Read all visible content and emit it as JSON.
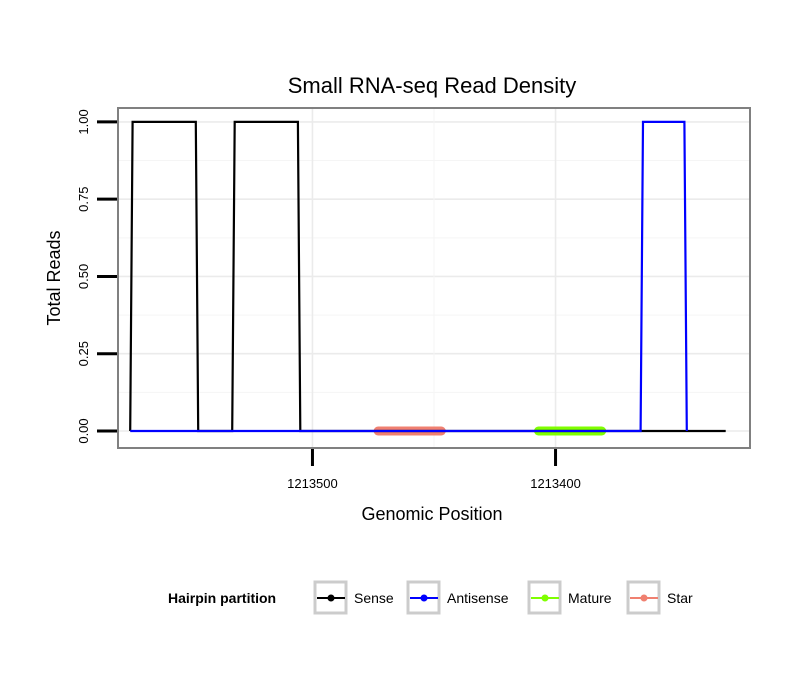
{
  "chart_data": {
    "type": "line",
    "title": "Small RNA-seq Read Density",
    "xlabel": "Genomic Position",
    "ylabel": "Total Reads",
    "x_reversed": true,
    "xlim": [
      1213580,
      1213320
    ],
    "ylim": [
      -0.055,
      1.045
    ],
    "x_ticks": [
      {
        "value": 1213500,
        "label": "1213500"
      },
      {
        "value": 1213400,
        "label": "1213400"
      }
    ],
    "y_ticks": [
      {
        "value": 0.0,
        "label": "0.00"
      },
      {
        "value": 0.25,
        "label": "0.25"
      },
      {
        "value": 0.5,
        "label": "0.50"
      },
      {
        "value": 0.75,
        "label": "0.75"
      },
      {
        "value": 1.0,
        "label": "1.00"
      }
    ],
    "grid": true,
    "series": [
      {
        "name": "Sense",
        "color": "#000000",
        "x": [
          1213575,
          1213574,
          1213548,
          1213547,
          1213533,
          1213532,
          1213506,
          1213505,
          1213330
        ],
        "y": [
          0,
          1,
          1,
          0,
          0,
          1,
          1,
          0,
          0
        ]
      },
      {
        "name": "Antisense",
        "color": "#0000ff",
        "x": [
          1213575,
          1213547,
          1213533,
          1213505,
          1213365,
          1213364,
          1213347,
          1213346
        ],
        "y": [
          0,
          0,
          0,
          0,
          0,
          1,
          1,
          0
        ]
      },
      {
        "name": "Mature",
        "color": "#7fff00",
        "x": [
          1213407,
          1213381
        ],
        "y": [
          0,
          0
        ]
      },
      {
        "name": "Star",
        "color": "#f08070",
        "x": [
          1213473,
          1213447
        ],
        "y": [
          0,
          0
        ]
      }
    ],
    "legend": {
      "title": "Hairpin partition",
      "position": "bottom",
      "entries": [
        "Sense",
        "Antisense",
        "Mature",
        "Star"
      ]
    }
  }
}
